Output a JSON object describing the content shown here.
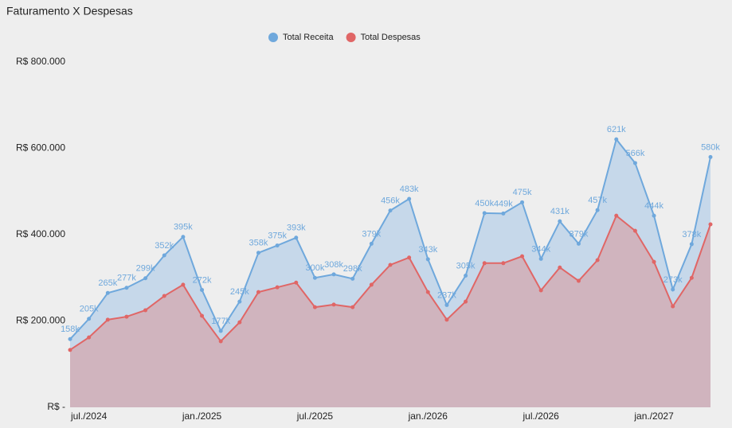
{
  "chart_data": {
    "type": "area",
    "title": "Faturamento X Despesas",
    "categories": [
      null,
      "jul./2024",
      null,
      null,
      null,
      null,
      null,
      "jan./2025",
      null,
      null,
      null,
      null,
      null,
      "jul./2025",
      null,
      null,
      null,
      null,
      null,
      "jan./2026",
      null,
      null,
      null,
      null,
      null,
      "jul./2026",
      null,
      null,
      null,
      null,
      null,
      "jan./2027",
      null,
      null,
      null
    ],
    "series": [
      {
        "name": "Total Receita",
        "color": "#6fa8dc",
        "fill": "#c6d8ea",
        "values": [
          158000,
          205000,
          265000,
          277000,
          299000,
          352000,
          395000,
          272000,
          177000,
          245000,
          358000,
          375000,
          393000,
          300000,
          308000,
          298000,
          379000,
          456000,
          483000,
          343000,
          237000,
          305000,
          450000,
          449000,
          475000,
          344000,
          431000,
          379000,
          457000,
          621000,
          566000,
          444000,
          273000,
          378000,
          580000
        ],
        "value_labels": [
          "158k",
          "205k",
          "265k",
          "277k",
          "299k",
          "352k",
          "395k",
          "272k",
          "177k",
          "245k",
          "358k",
          "375k",
          "393k",
          "300k",
          "308k",
          "298k",
          "379k",
          "456k",
          "483k",
          "343k",
          "237k",
          "305k",
          "450k",
          "449k",
          "475k",
          "344k",
          "431k",
          "379k",
          "457k",
          "621k",
          "566k",
          "444k",
          "273k",
          "378k",
          "580k"
        ]
      },
      {
        "name": "Total Despesas",
        "color": "#e06666",
        "fill": "#d0b4be",
        "values": [
          133000,
          162000,
          203000,
          210000,
          225000,
          258000,
          284000,
          212000,
          153000,
          197000,
          267000,
          278000,
          289000,
          232000,
          238000,
          232000,
          284000,
          330000,
          347000,
          267000,
          203000,
          245000,
          334000,
          334000,
          350000,
          271000,
          324000,
          293000,
          341000,
          444000,
          409000,
          337000,
          234000,
          300000,
          424000
        ]
      }
    ],
    "ylim": [
      0,
      800000
    ],
    "yticks": [
      {
        "value": 0,
        "label": "R$ -"
      },
      {
        "value": 200000,
        "label": "R$ 200.000"
      },
      {
        "value": 400000,
        "label": "R$ 400.000"
      },
      {
        "value": 600000,
        "label": "R$ 600.000"
      },
      {
        "value": 800000,
        "label": "R$ 800.000"
      }
    ],
    "legend": "top"
  }
}
